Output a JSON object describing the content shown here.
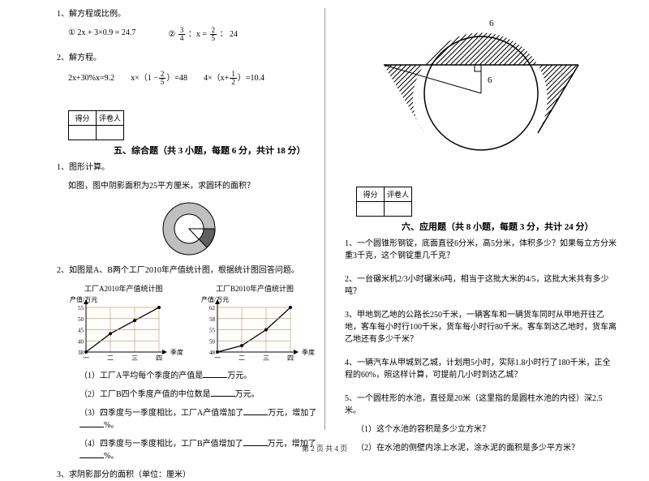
{
  "left": {
    "p1_title": "1、解方程或比例。",
    "p1_eq1_label": "①",
    "p1_eq1": "2x + 3×0.9 = 24.7",
    "p1_eq2_label": "②",
    "p1_eq2_tail": "24",
    "p1_eq2_frac1_n": "3",
    "p1_eq2_frac1_d": "4",
    "p1_eq2_mid": "：x =",
    "p1_eq2_frac2_n": "2",
    "p1_eq2_frac2_d": "5",
    "p1_eq2_after": "：",
    "p2_title": "2、解方程。",
    "p2_eq1": "2x+30%x=9.2",
    "p2_eq2_pre": "x×（1 −",
    "p2_eq2_frac_n": "2",
    "p2_eq2_frac_d": "5",
    "p2_eq2_post": "）=48",
    "p2_eq3_pre": "4×（x+",
    "p2_eq3_frac_n": "1",
    "p2_eq3_frac_d": "2",
    "p2_eq3_post": "）=10.4",
    "score_h1": "得分",
    "score_h2": "评卷人",
    "sec5_title": "五、综合题（共 3 小题，每题 6 分，共计 18 分）",
    "q5_1a": "1、图形计算。",
    "q5_1b": "如图，图中阴影面积为25平方厘米，求圆环的面积？",
    "q5_2": "2、如图是A、B两个工厂2010年产值统计图，根据统计图回答问题。",
    "chartA_title": "工厂A2010年产值统计图",
    "chartB_title": "工厂B2010年产值统计图",
    "chart_ylabel": "产值/万元",
    "chart_xlabel": "季度",
    "chartA_yticks": [
      "55",
      "50",
      "45",
      "40",
      "38"
    ],
    "chartB_yticks": [
      "62",
      "58",
      "55",
      "50",
      "48"
    ],
    "chart_xticks": [
      "一",
      "二",
      "三",
      "四"
    ],
    "chartA_points": [
      [
        0,
        38
      ],
      [
        1,
        45
      ],
      [
        2,
        50
      ],
      [
        3,
        55
      ]
    ],
    "chartB_points": [
      [
        0,
        48
      ],
      [
        1,
        50
      ],
      [
        2,
        55
      ],
      [
        3,
        62
      ]
    ],
    "chartA_ylim": [
      38,
      55
    ],
    "chartB_ylim": [
      48,
      62
    ],
    "grid_color": "#c9a06a",
    "line_color": "#000000",
    "q5_2_1a": "（1）工厂A平均每个季度的产值是",
    "q5_2_1b": "万元。",
    "q5_2_2a": "（2）工厂B四个季度产值的中位数是",
    "q5_2_2b": "万元。",
    "q5_2_3a": "（3）四季度与一季度相比，工厂A产值增加了",
    "q5_2_3b": "万元，增加了",
    "q5_2_3c": "%。",
    "q5_2_4a": "（4）四季度与一季度相比，工厂B产值增加了",
    "q5_2_4b": "万元，增加了",
    "q5_2_4c": "%。",
    "q5_3": "3、求阴影部分的面积（单位：厘米）"
  },
  "right": {
    "fig_top_label": "6",
    "fig_side_label": "6",
    "score_h1": "得分",
    "score_h2": "评卷人",
    "sec6_title": "六、应用题（共 8 小题，每题 3 分，共计 24 分）",
    "q1": "1、一个圆锥形钢锭，底面直径6分米，高5分米，体积多少？如果每立方分米重3千克，这个钢锭重几千克？",
    "q2": "2、一台碾米机2/3小时碾米6吨，相当于这批大米的4/5，这批大米共有多少吨？",
    "q3": "3、甲地到乙地的公路长250千米，一辆客车和一辆货车同时从甲地开往乙地，客车每小时行100千米，货车每小时行80千米。客车到达乙地时，货车离乙地还有多少千米？",
    "q4": "4、一辆汽车从甲城到乙城，计划用5小时，实际1.8小时行了180千米，正全程的60%，照这样计算，可提前几小时到达乙城？",
    "q5": "5、一个圆柱形的水池，直径是20米（这里指的是圆柱水池的内径）深2.5米。",
    "q5_1": "（1）这个水池的容积是多少立方米？",
    "q5_2": "（2）在水池的侧壁内涂上水泥，涂水泥的面积是多少平方米？"
  },
  "footer": "第 2 页 共 4 页"
}
